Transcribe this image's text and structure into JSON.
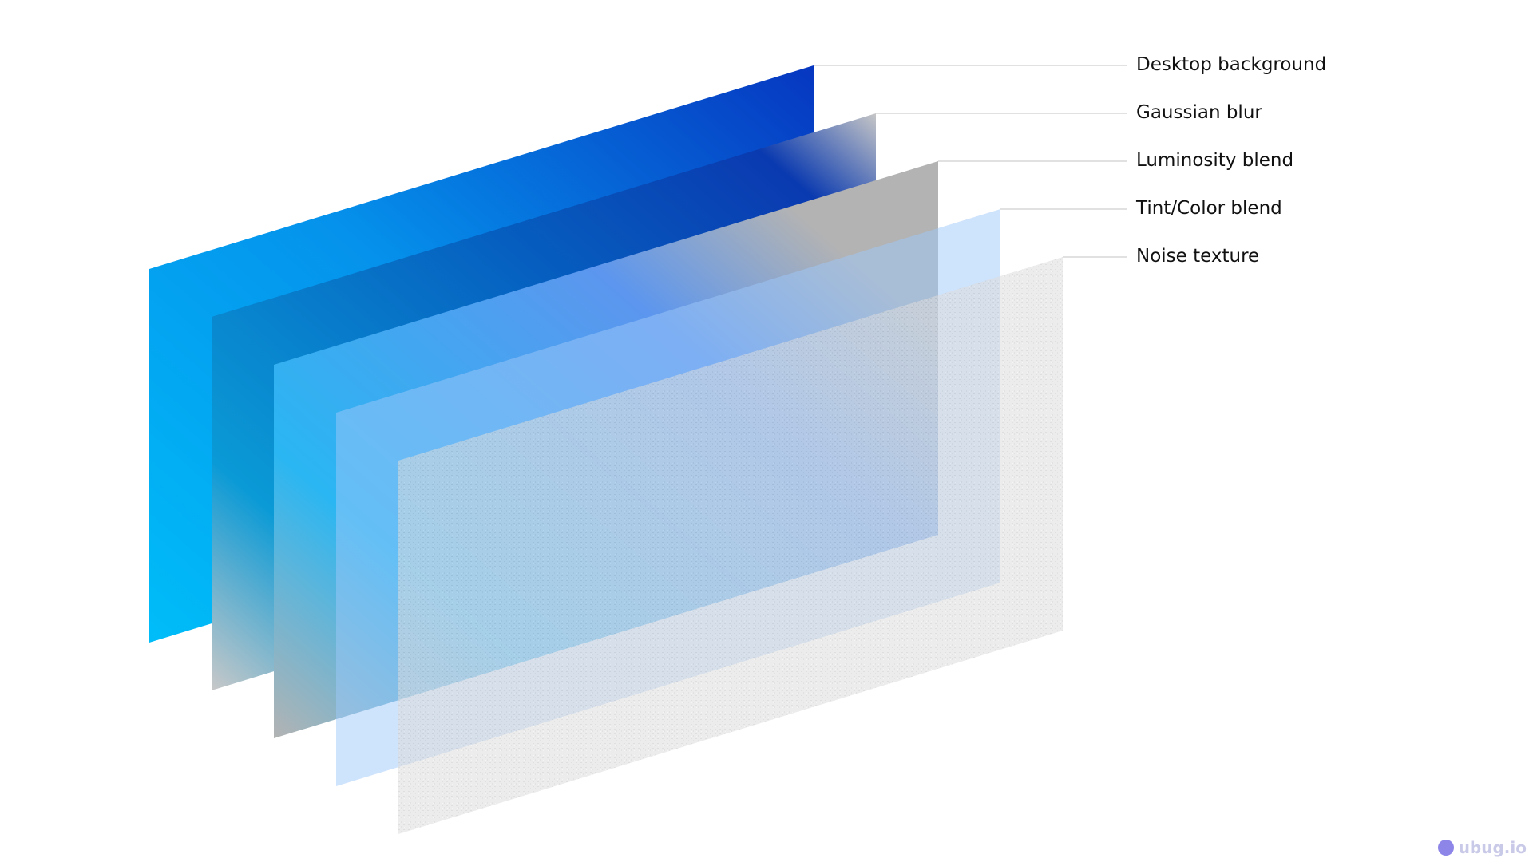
{
  "layers": [
    {
      "label": "Desktop background"
    },
    {
      "label": "Gaussian blur"
    },
    {
      "label": "Luminosity blend"
    },
    {
      "label": "Tint/Color blend"
    },
    {
      "label": "Noise texture"
    }
  ],
  "colors": {
    "desktop_light": "#00b8f8",
    "desktop_dark": "#0637c0",
    "luminosity_gray": "#b3b3b3",
    "tint": "#9ec8fa",
    "noise": "#d8d8d8"
  },
  "watermark": "ubug.io"
}
